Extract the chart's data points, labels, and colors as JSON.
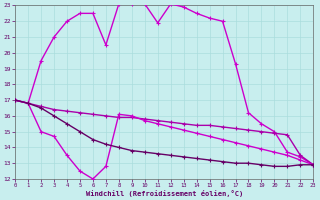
{
  "xlabel": "Windchill (Refroidissement éolien,°C)",
  "xlim": [
    0,
    23
  ],
  "ylim": [
    12,
    23
  ],
  "yticks": [
    12,
    13,
    14,
    15,
    16,
    17,
    18,
    19,
    20,
    21,
    22,
    23
  ],
  "xticks": [
    0,
    1,
    2,
    3,
    4,
    5,
    6,
    7,
    8,
    9,
    10,
    11,
    12,
    13,
    14,
    15,
    16,
    17,
    18,
    19,
    20,
    21,
    22,
    23
  ],
  "bg_color": "#c8eeee",
  "grid_color": "#aadddd",
  "series": [
    {
      "x": [
        0,
        1,
        2,
        3,
        4,
        5,
        6,
        7,
        8,
        9,
        10,
        11,
        12,
        13,
        14,
        15,
        16,
        17,
        18,
        19,
        20,
        21,
        22,
        23
      ],
      "y": [
        17.0,
        16.8,
        19.5,
        21.0,
        22.0,
        22.5,
        22.5,
        20.5,
        23.1,
        23.1,
        23.1,
        21.9,
        23.1,
        22.9,
        22.5,
        22.2,
        22.0,
        19.3,
        16.2,
        15.5,
        15.0,
        13.7,
        13.4,
        12.9
      ],
      "color": "#cc00cc",
      "lw": 1.0,
      "marker": "+"
    },
    {
      "x": [
        0,
        1,
        2,
        3,
        4,
        5,
        6,
        7,
        8,
        9,
        10,
        11,
        12,
        13,
        14,
        15,
        16,
        17,
        18,
        19,
        20,
        21,
        22,
        23
      ],
      "y": [
        17.0,
        16.8,
        16.6,
        16.4,
        16.3,
        16.2,
        16.1,
        16.0,
        15.9,
        15.9,
        15.8,
        15.7,
        15.6,
        15.5,
        15.4,
        15.4,
        15.3,
        15.2,
        15.1,
        15.0,
        14.9,
        14.8,
        13.5,
        12.9
      ],
      "color": "#aa00aa",
      "lw": 1.0,
      "marker": "+"
    },
    {
      "x": [
        0,
        1,
        2,
        3,
        4,
        5,
        6,
        7,
        8,
        9,
        10,
        11,
        12,
        13,
        14,
        15,
        16,
        17,
        18,
        19,
        20,
        21,
        22,
        23
      ],
      "y": [
        17.0,
        16.8,
        15.0,
        14.7,
        13.5,
        12.5,
        12.0,
        12.8,
        16.1,
        16.0,
        15.7,
        15.5,
        15.3,
        15.1,
        14.9,
        14.7,
        14.5,
        14.3,
        14.1,
        13.9,
        13.7,
        13.5,
        13.2,
        12.9
      ],
      "color": "#cc00cc",
      "lw": 1.0,
      "marker": "+"
    },
    {
      "x": [
        0,
        1,
        2,
        3,
        4,
        5,
        6,
        7,
        8,
        9,
        10,
        11,
        12,
        13,
        14,
        15,
        16,
        17,
        18,
        19,
        20,
        21,
        22,
        23
      ],
      "y": [
        17.0,
        16.8,
        16.5,
        16.0,
        15.5,
        15.0,
        14.5,
        14.2,
        14.0,
        13.8,
        13.7,
        13.6,
        13.5,
        13.4,
        13.3,
        13.2,
        13.1,
        13.0,
        13.0,
        12.9,
        12.8,
        12.8,
        12.9,
        12.9
      ],
      "color": "#660066",
      "lw": 1.0,
      "marker": "+"
    }
  ]
}
